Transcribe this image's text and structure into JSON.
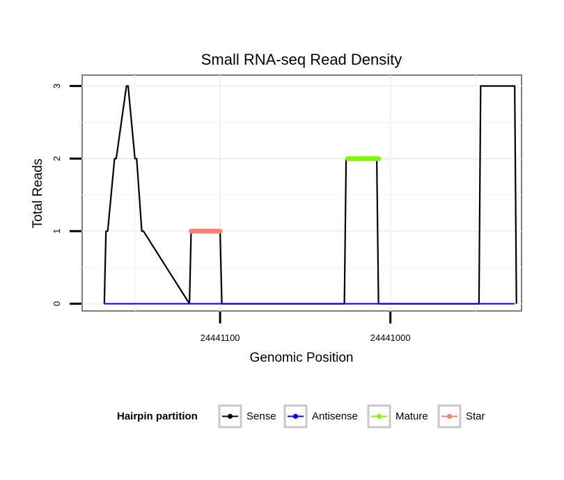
{
  "chart_data": {
    "type": "line",
    "title": "Small RNA-seq Read Density",
    "xlabel": "Genomic Position",
    "ylabel": "Total Reads",
    "x_reversed": true,
    "xlim": [
      24441181,
      24440923
    ],
    "ylim": [
      -0.1,
      3.15
    ],
    "xticks": [
      {
        "value": 24441100,
        "label": "24441100"
      },
      {
        "value": 24441000,
        "label": "24441000"
      }
    ],
    "yticks": [
      {
        "value": 0,
        "label": "0"
      },
      {
        "value": 1,
        "label": "1"
      },
      {
        "value": 2,
        "label": "2"
      },
      {
        "value": 3,
        "label": "3"
      }
    ],
    "grid": true,
    "legend": {
      "title": "Hairpin partition",
      "position": "bottom",
      "entries": [
        {
          "name": "Sense",
          "color": "#000000"
        },
        {
          "name": "Antisense",
          "color": "#0000ff"
        },
        {
          "name": "Mature",
          "color": "#7cfc00"
        },
        {
          "name": "Star",
          "color": "#fa8072"
        }
      ]
    },
    "series": [
      {
        "name": "Sense",
        "color": "#000000",
        "x": [
          24441168,
          24441167,
          24441166,
          24441162,
          24441161,
          24441155,
          24441154,
          24441150,
          24441149,
          24441146,
          24441145,
          24441118,
          24441117,
          24441100,
          24441099,
          24441027,
          24441026,
          24441008,
          24441007,
          24440948,
          24440947,
          24440927,
          24440926
        ],
        "values": [
          0,
          1,
          1,
          2,
          2,
          3,
          3,
          2,
          2,
          1,
          1,
          0,
          1,
          1,
          0,
          0,
          2,
          2,
          0,
          0,
          3,
          3,
          0
        ]
      },
      {
        "name": "Antisense",
        "color": "#0000ff",
        "x": [
          24441168,
          24440927
        ],
        "values": [
          0,
          0
        ]
      },
      {
        "name": "Mature",
        "color": "#7cfc00",
        "x": [
          24441025,
          24441007
        ],
        "values": [
          2,
          2
        ]
      },
      {
        "name": "Star",
        "color": "#fa8072",
        "x": [
          24441117,
          24441100
        ],
        "values": [
          1,
          1
        ]
      }
    ]
  }
}
